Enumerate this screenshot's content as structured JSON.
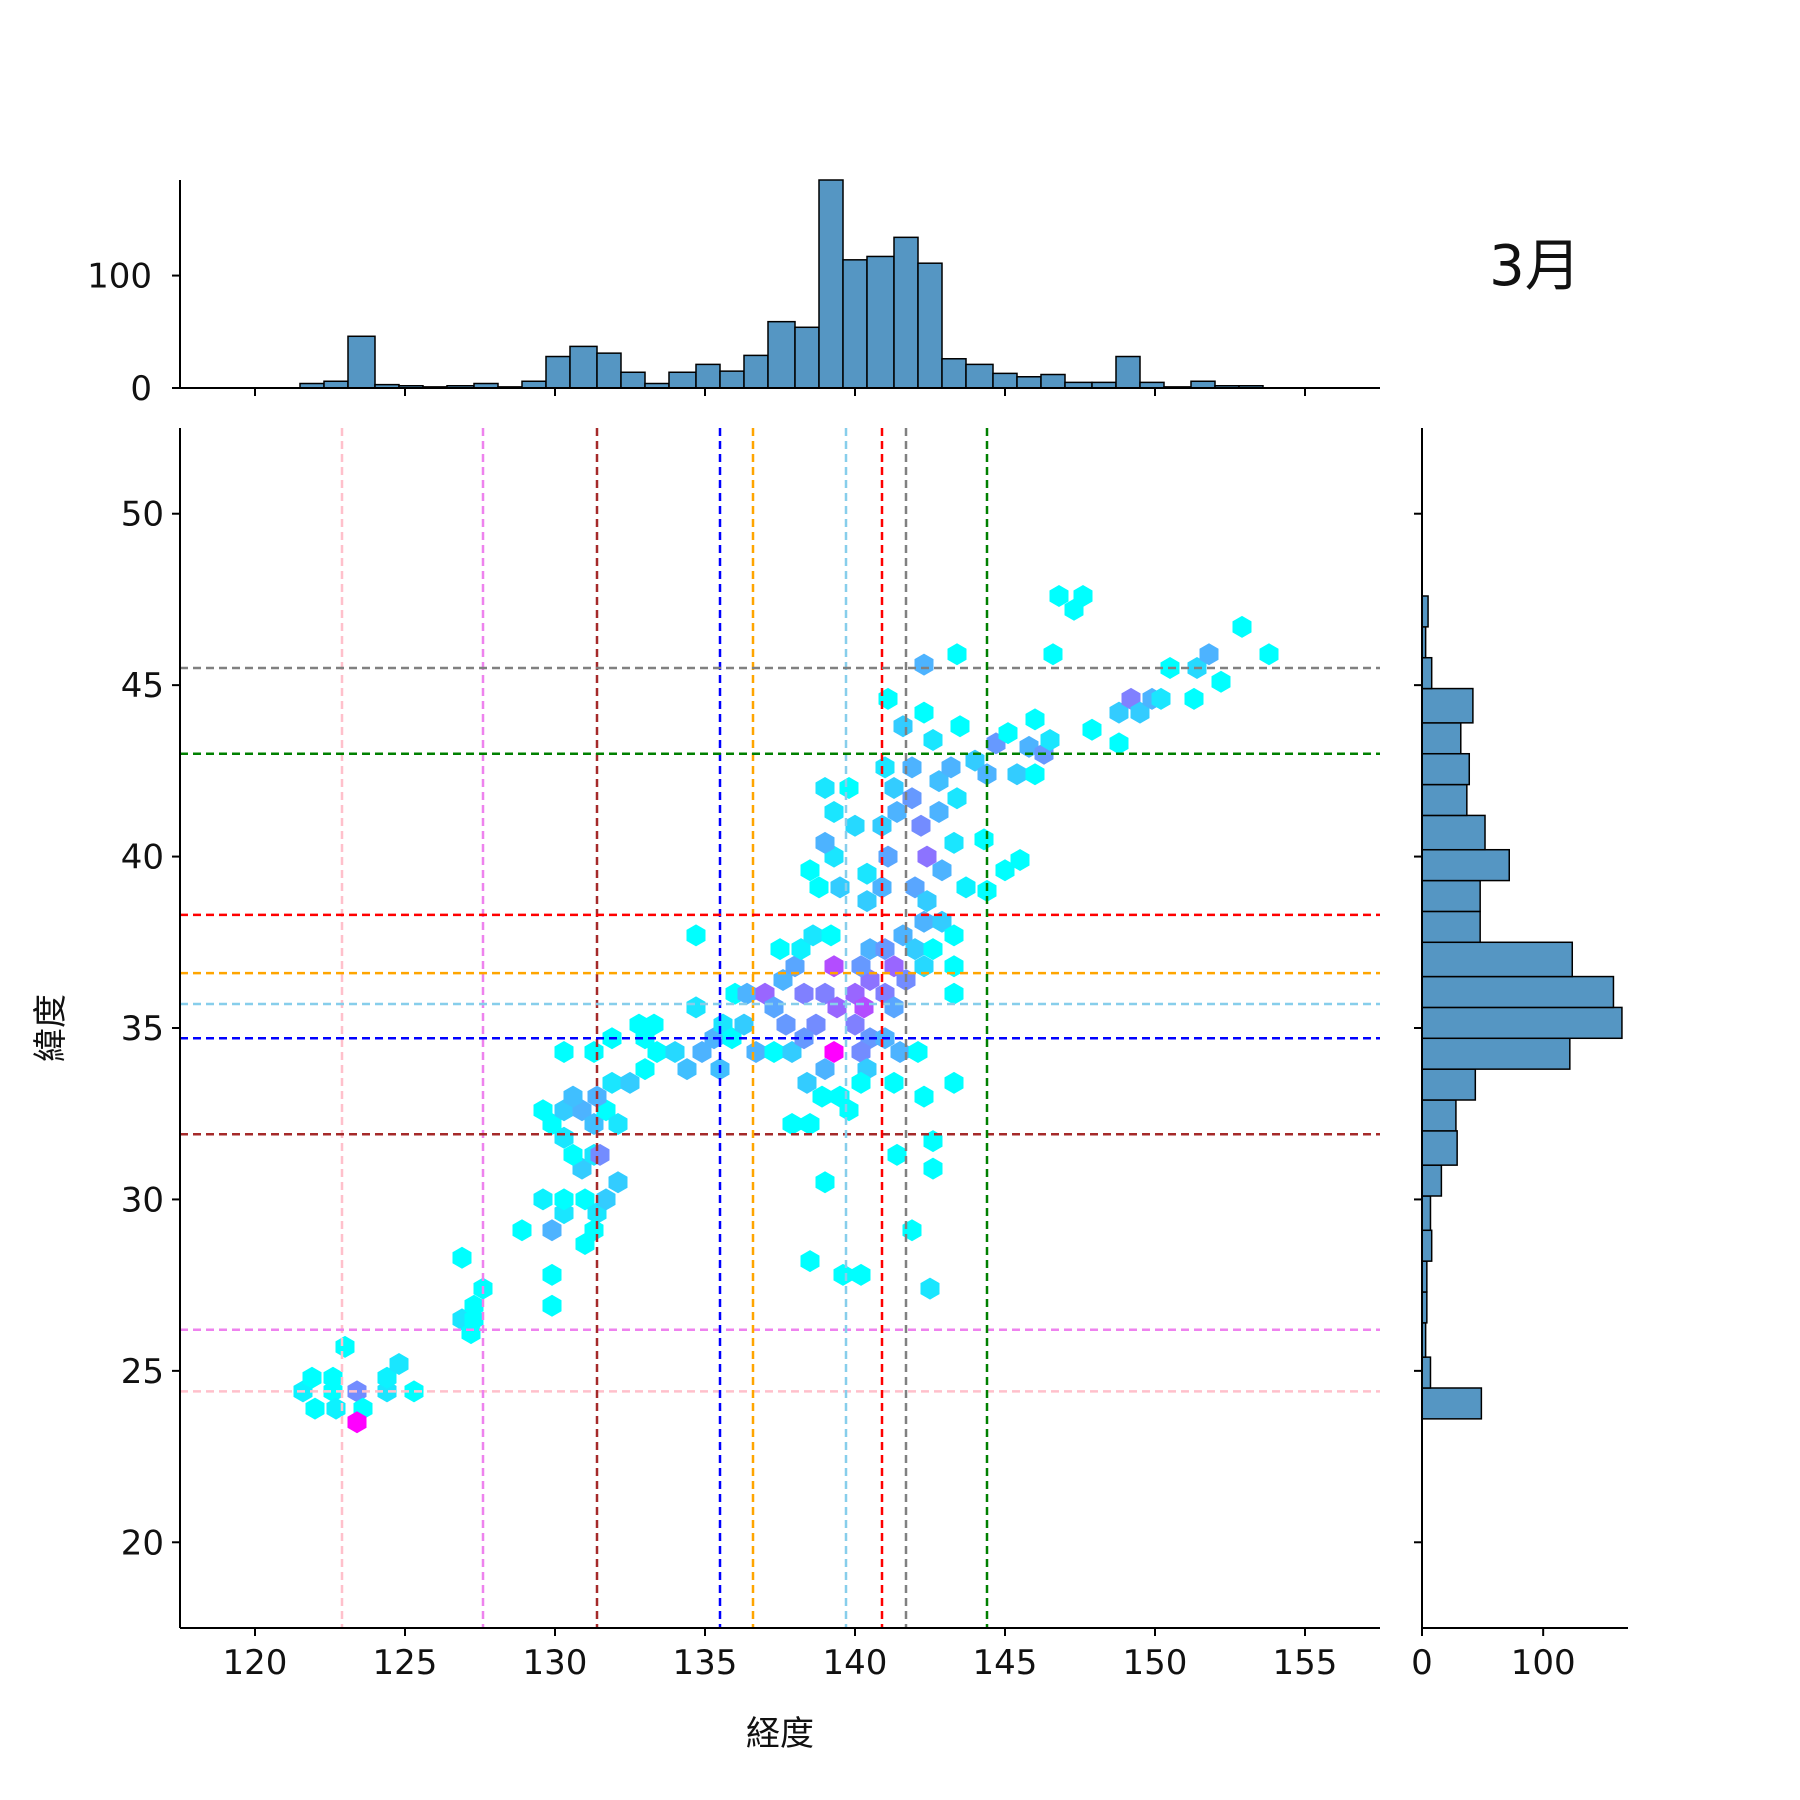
{
  "chart_data": {
    "type": "hexbin-jointplot",
    "title": "3月",
    "xlabel": "経度",
    "ylabel": "緯度",
    "xlim": [
      117.5,
      157.5
    ],
    "ylim": [
      17.5,
      52.5
    ],
    "x_ticks": [
      "120",
      "125",
      "130",
      "135",
      "140",
      "145",
      "150",
      "155"
    ],
    "y_ticks": [
      "20",
      "25",
      "30",
      "35",
      "40",
      "45",
      "50"
    ],
    "x_tick_values": [
      120,
      125,
      130,
      135,
      140,
      145,
      150,
      155
    ],
    "y_tick_values": [
      20,
      25,
      30,
      35,
      40,
      45,
      50
    ],
    "grid": false,
    "colormap": [
      "#00ffff",
      "#ff00ff"
    ],
    "marginal_top": {
      "type": "histogram",
      "color": "#5596c3",
      "ylim": [
        0,
        185
      ],
      "tick_values": [
        0,
        100
      ],
      "tick_labels": [
        "0",
        "100"
      ],
      "bins": [
        [
          121.5,
          122.3,
          4
        ],
        [
          122.3,
          123.1,
          6
        ],
        [
          123.1,
          124.0,
          46
        ],
        [
          124.0,
          124.8,
          3
        ],
        [
          124.8,
          125.6,
          2
        ],
        [
          125.6,
          126.4,
          1
        ],
        [
          126.4,
          127.3,
          2
        ],
        [
          127.3,
          128.1,
          4
        ],
        [
          128.1,
          128.9,
          1
        ],
        [
          128.9,
          129.7,
          6
        ],
        [
          129.7,
          130.5,
          28
        ],
        [
          130.5,
          131.4,
          37
        ],
        [
          131.4,
          132.2,
          31
        ],
        [
          132.2,
          133.0,
          14
        ],
        [
          133.0,
          133.8,
          4
        ],
        [
          133.8,
          134.7,
          14
        ],
        [
          134.7,
          135.5,
          21
        ],
        [
          135.5,
          136.3,
          15
        ],
        [
          136.3,
          137.1,
          29
        ],
        [
          137.1,
          138.0,
          59
        ],
        [
          138.0,
          138.8,
          54
        ],
        [
          138.8,
          139.6,
          185
        ],
        [
          139.6,
          140.4,
          114
        ],
        [
          140.4,
          141.3,
          117
        ],
        [
          141.3,
          142.1,
          134
        ],
        [
          142.1,
          142.9,
          111
        ],
        [
          142.9,
          143.7,
          26
        ],
        [
          143.7,
          144.6,
          21
        ],
        [
          144.6,
          145.4,
          13
        ],
        [
          145.4,
          146.2,
          10
        ],
        [
          146.2,
          147.0,
          12
        ],
        [
          147.0,
          147.9,
          5
        ],
        [
          147.9,
          148.7,
          5
        ],
        [
          148.7,
          149.5,
          28
        ],
        [
          149.5,
          150.3,
          5
        ],
        [
          150.3,
          151.2,
          1
        ],
        [
          151.2,
          152.0,
          6
        ],
        [
          152.0,
          152.8,
          2
        ],
        [
          152.8,
          153.6,
          2
        ]
      ]
    },
    "marginal_right": {
      "type": "histogram",
      "orientation": "horizontal",
      "color": "#5596c3",
      "xlim": [
        0,
        170
      ],
      "tick_values": [
        0,
        100
      ],
      "tick_labels": [
        "0",
        "100"
      ],
      "bins": [
        [
          23.6,
          24.5,
          49
        ],
        [
          24.5,
          25.4,
          7
        ],
        [
          25.4,
          26.4,
          3
        ],
        [
          26.4,
          27.3,
          4
        ],
        [
          27.3,
          28.2,
          4
        ],
        [
          28.2,
          29.1,
          8
        ],
        [
          29.1,
          30.1,
          7
        ],
        [
          30.1,
          31.0,
          16
        ],
        [
          31.0,
          32.0,
          29
        ],
        [
          32.0,
          32.9,
          28
        ],
        [
          32.9,
          33.8,
          44
        ],
        [
          33.8,
          34.7,
          122
        ],
        [
          34.7,
          35.6,
          165
        ],
        [
          35.6,
          36.5,
          158
        ],
        [
          36.5,
          37.5,
          124
        ],
        [
          37.5,
          38.4,
          48
        ],
        [
          38.4,
          39.3,
          48
        ],
        [
          39.3,
          40.2,
          72
        ],
        [
          40.2,
          41.2,
          52
        ],
        [
          41.2,
          42.1,
          37
        ],
        [
          42.1,
          43.0,
          39
        ],
        [
          43.0,
          43.9,
          32
        ],
        [
          43.9,
          44.9,
          42
        ],
        [
          44.9,
          45.8,
          8
        ],
        [
          45.8,
          46.7,
          3
        ],
        [
          46.7,
          47.6,
          5
        ]
      ]
    },
    "reference_lines": [
      {
        "color": "#ffc0cb",
        "x": 122.9,
        "y": 24.4
      },
      {
        "color": "#ee82ee",
        "x": 127.6,
        "y": 26.2
      },
      {
        "color": "#a52a2a",
        "x": 131.4,
        "y": 31.9
      },
      {
        "color": "#0000ff",
        "x": 135.5,
        "y": 34.7
      },
      {
        "color": "#ffa500",
        "x": 136.6,
        "y": 36.6
      },
      {
        "color": "#87ceeb",
        "x": 139.7,
        "y": 35.7
      },
      {
        "color": "#ff0000",
        "x": 140.9,
        "y": 38.3
      },
      {
        "color": "#808080",
        "x": 141.7,
        "y": 45.5
      },
      {
        "color": "#008000",
        "x": 144.4,
        "y": 43.0
      }
    ],
    "hexbins": [
      [
        121.6,
        24.4,
        0.05
      ],
      [
        122.6,
        24.4,
        0.0
      ],
      [
        123.4,
        24.4,
        0.45
      ],
      [
        124.4,
        24.4,
        0.1
      ],
      [
        125.3,
        24.4,
        0.0
      ],
      [
        122.0,
        23.9,
        0.0
      ],
      [
        122.7,
        23.9,
        0.05
      ],
      [
        123.6,
        23.9,
        0.0
      ],
      [
        123.4,
        23.5,
        1.0
      ],
      [
        121.9,
        24.8,
        0.0
      ],
      [
        122.6,
        24.8,
        0.0
      ],
      [
        124.4,
        24.8,
        0.05
      ],
      [
        124.8,
        25.2,
        0.1
      ],
      [
        123.0,
        25.7,
        0.0
      ],
      [
        126.9,
        26.5,
        0.1
      ],
      [
        127.3,
        26.5,
        0.0
      ],
      [
        127.2,
        26.1,
        0.0
      ],
      [
        127.3,
        26.9,
        0.0
      ],
      [
        127.6,
        27.4,
        0.0
      ],
      [
        126.9,
        28.3,
        0.0
      ],
      [
        129.9,
        26.9,
        0.0
      ],
      [
        129.9,
        27.8,
        0.0
      ],
      [
        128.9,
        29.1,
        0.0
      ],
      [
        129.9,
        29.1,
        0.3
      ],
      [
        130.3,
        29.6,
        0.1
      ],
      [
        129.6,
        30.0,
        0.05
      ],
      [
        130.3,
        30.0,
        0.0
      ],
      [
        131.0,
        30.0,
        0.0
      ],
      [
        131.4,
        29.6,
        0.1
      ],
      [
        131.3,
        29.1,
        0.0
      ],
      [
        131.0,
        28.7,
        0.0
      ],
      [
        131.7,
        30.0,
        0.2
      ],
      [
        132.1,
        30.5,
        0.2
      ],
      [
        130.9,
        30.9,
        0.2
      ],
      [
        131.3,
        31.3,
        0.1
      ],
      [
        130.6,
        31.3,
        0.0
      ],
      [
        131.5,
        31.3,
        0.45
      ],
      [
        130.3,
        31.8,
        0.1
      ],
      [
        129.9,
        32.2,
        0.0
      ],
      [
        129.6,
        32.6,
        0.0
      ],
      [
        130.3,
        32.6,
        0.2
      ],
      [
        130.9,
        32.6,
        0.3
      ],
      [
        131.3,
        32.2,
        0.25
      ],
      [
        131.7,
        32.6,
        0.0
      ],
      [
        132.1,
        32.2,
        0.1
      ],
      [
        130.6,
        33.0,
        0.25
      ],
      [
        131.4,
        33.0,
        0.3
      ],
      [
        131.9,
        33.4,
        0.1
      ],
      [
        132.5,
        33.4,
        0.2
      ],
      [
        133.0,
        33.8,
        0.0
      ],
      [
        130.3,
        34.3,
        0.0
      ],
      [
        131.3,
        34.3,
        0.0
      ],
      [
        131.9,
        34.7,
        0.0
      ],
      [
        132.8,
        35.1,
        0.0
      ],
      [
        133.3,
        35.1,
        0.0
      ],
      [
        133.0,
        34.7,
        0.0
      ],
      [
        133.4,
        34.3,
        0.0
      ],
      [
        134.0,
        34.3,
        0.15
      ],
      [
        134.4,
        33.8,
        0.25
      ],
      [
        134.9,
        34.3,
        0.3
      ],
      [
        135.5,
        33.8,
        0.25
      ],
      [
        135.3,
        34.7,
        0.3
      ],
      [
        135.6,
        35.1,
        0.1
      ],
      [
        135.9,
        34.7,
        0.0
      ],
      [
        134.7,
        35.6,
        0.1
      ],
      [
        134.7,
        37.7,
        0.0
      ],
      [
        136.0,
        36.0,
        0.0
      ],
      [
        136.3,
        35.1,
        0.2
      ],
      [
        136.7,
        34.3,
        0.3
      ],
      [
        136.4,
        36.0,
        0.3
      ],
      [
        137.0,
        36.0,
        0.6
      ],
      [
        137.3,
        35.6,
        0.35
      ],
      [
        137.7,
        35.1,
        0.4
      ],
      [
        137.3,
        34.3,
        0.0
      ],
      [
        137.9,
        34.3,
        0.2
      ],
      [
        137.6,
        36.4,
        0.3
      ],
      [
        138.0,
        36.8,
        0.35
      ],
      [
        138.3,
        36.0,
        0.5
      ],
      [
        138.7,
        35.1,
        0.45
      ],
      [
        138.3,
        34.7,
        0.4
      ],
      [
        137.5,
        37.3,
        0.0
      ],
      [
        138.2,
        37.3,
        0.05
      ],
      [
        138.6,
        37.7,
        0.1
      ],
      [
        139.2,
        37.7,
        0.0
      ],
      [
        139.3,
        36.8,
        0.7
      ],
      [
        139.0,
        36.0,
        0.5
      ],
      [
        139.4,
        35.6,
        0.6
      ],
      [
        139.3,
        34.3,
        1.0
      ],
      [
        139.0,
        33.8,
        0.3
      ],
      [
        138.4,
        33.4,
        0.2
      ],
      [
        138.9,
        33.0,
        0.0
      ],
      [
        139.5,
        33.0,
        0.0
      ],
      [
        138.5,
        32.2,
        0.0
      ],
      [
        137.9,
        32.2,
        0.0
      ],
      [
        139.8,
        32.6,
        0.0
      ],
      [
        140.0,
        36.0,
        0.6
      ],
      [
        140.3,
        35.6,
        0.7
      ],
      [
        140.0,
        35.1,
        0.5
      ],
      [
        140.5,
        34.7,
        0.4
      ],
      [
        140.2,
        34.3,
        0.45
      ],
      [
        140.4,
        33.8,
        0.2
      ],
      [
        140.2,
        33.4,
        0.0
      ],
      [
        140.5,
        36.4,
        0.55
      ],
      [
        140.2,
        36.8,
        0.4
      ],
      [
        140.5,
        37.3,
        0.3
      ],
      [
        141.0,
        36.0,
        0.5
      ],
      [
        141.3,
        36.8,
        0.6
      ],
      [
        141.0,
        37.3,
        0.4
      ],
      [
        141.6,
        37.7,
        0.3
      ],
      [
        142.0,
        37.3,
        0.2
      ],
      [
        141.7,
        36.4,
        0.45
      ],
      [
        141.3,
        35.6,
        0.35
      ],
      [
        141.0,
        34.7,
        0.3
      ],
      [
        141.5,
        34.3,
        0.3
      ],
      [
        141.3,
        33.4,
        0.0
      ],
      [
        142.3,
        36.8,
        0.15
      ],
      [
        142.6,
        37.3,
        0.0
      ],
      [
        142.3,
        38.1,
        0.3
      ],
      [
        142.9,
        38.1,
        0.2
      ],
      [
        143.3,
        37.7,
        0.0
      ],
      [
        143.3,
        36.8,
        0.0
      ],
      [
        143.3,
        36.0,
        0.0
      ],
      [
        142.1,
        34.3,
        0.0
      ],
      [
        142.3,
        33.0,
        0.0
      ],
      [
        142.6,
        31.7,
        0.0
      ],
      [
        142.6,
        30.9,
        0.0
      ],
      [
        141.4,
        31.3,
        0.0
      ],
      [
        141.9,
        29.1,
        0.0
      ],
      [
        143.3,
        33.4,
        0.0
      ],
      [
        142.5,
        27.4,
        0.1
      ],
      [
        139.0,
        30.5,
        0.0
      ],
      [
        138.5,
        28.2,
        0.0
      ],
      [
        139.6,
        27.8,
        0.0
      ],
      [
        140.2,
        27.8,
        0.0
      ],
      [
        138.5,
        39.6,
        0.0
      ],
      [
        138.8,
        39.1,
        0.0
      ],
      [
        139.5,
        39.1,
        0.2
      ],
      [
        139.3,
        40.0,
        0.1
      ],
      [
        139.0,
        40.4,
        0.3
      ],
      [
        139.3,
        41.3,
        0.1
      ],
      [
        139.0,
        42.0,
        0.1
      ],
      [
        139.8,
        42.0,
        0.0
      ],
      [
        140.0,
        40.9,
        0.15
      ],
      [
        140.4,
        39.5,
        0.1
      ],
      [
        140.4,
        38.7,
        0.2
      ],
      [
        140.9,
        39.1,
        0.3
      ],
      [
        141.1,
        40.0,
        0.35
      ],
      [
        140.9,
        40.9,
        0.2
      ],
      [
        141.4,
        41.3,
        0.3
      ],
      [
        141.3,
        42.0,
        0.2
      ],
      [
        141.0,
        42.6,
        0.1
      ],
      [
        141.1,
        44.6,
        0.0
      ],
      [
        141.6,
        43.8,
        0.2
      ],
      [
        141.9,
        42.6,
        0.3
      ],
      [
        141.9,
        41.7,
        0.4
      ],
      [
        142.2,
        40.9,
        0.45
      ],
      [
        142.4,
        40.0,
        0.55
      ],
      [
        142.0,
        39.1,
        0.35
      ],
      [
        142.4,
        38.7,
        0.2
      ],
      [
        142.9,
        39.6,
        0.3
      ],
      [
        142.8,
        41.3,
        0.3
      ],
      [
        142.8,
        42.2,
        0.25
      ],
      [
        142.6,
        43.4,
        0.1
      ],
      [
        142.3,
        44.2,
        0.0
      ],
      [
        143.2,
        42.6,
        0.3
      ],
      [
        143.4,
        41.7,
        0.1
      ],
      [
        143.3,
        40.4,
        0.1
      ],
      [
        143.7,
        39.1,
        0.05
      ],
      [
        143.5,
        43.8,
        0.0
      ],
      [
        142.3,
        45.6,
        0.3
      ],
      [
        143.4,
        45.9,
        0.0
      ],
      [
        144.0,
        42.8,
        0.2
      ],
      [
        144.4,
        42.4,
        0.3
      ],
      [
        144.7,
        43.3,
        0.4
      ],
      [
        144.3,
        40.5,
        0.0
      ],
      [
        145.0,
        39.6,
        0.0
      ],
      [
        145.5,
        39.9,
        0.0
      ],
      [
        144.4,
        39.0,
        0.0
      ],
      [
        145.1,
        43.6,
        0.0
      ],
      [
        145.8,
        43.2,
        0.3
      ],
      [
        146.3,
        43.0,
        0.4
      ],
      [
        146.5,
        43.4,
        0.1
      ],
      [
        146.0,
        44.0,
        0.0
      ],
      [
        145.4,
        42.4,
        0.2
      ],
      [
        146.0,
        42.4,
        0.0
      ],
      [
        146.6,
        45.9,
        0.0
      ],
      [
        146.8,
        47.6,
        0.0
      ],
      [
        147.3,
        47.2,
        0.0
      ],
      [
        147.6,
        47.6,
        0.0
      ],
      [
        147.9,
        43.7,
        0.0
      ],
      [
        148.8,
        43.3,
        0.0
      ],
      [
        148.8,
        44.2,
        0.2
      ],
      [
        149.2,
        44.6,
        0.5
      ],
      [
        149.5,
        44.2,
        0.2
      ],
      [
        149.9,
        44.6,
        0.3
      ],
      [
        150.2,
        44.6,
        0.1
      ],
      [
        150.5,
        45.5,
        0.0
      ],
      [
        151.3,
        44.6,
        0.0
      ],
      [
        151.4,
        45.5,
        0.15
      ],
      [
        151.8,
        45.9,
        0.3
      ],
      [
        152.2,
        45.1,
        0.0
      ],
      [
        152.9,
        46.7,
        0.0
      ],
      [
        153.8,
        45.9,
        0.0
      ]
    ]
  }
}
